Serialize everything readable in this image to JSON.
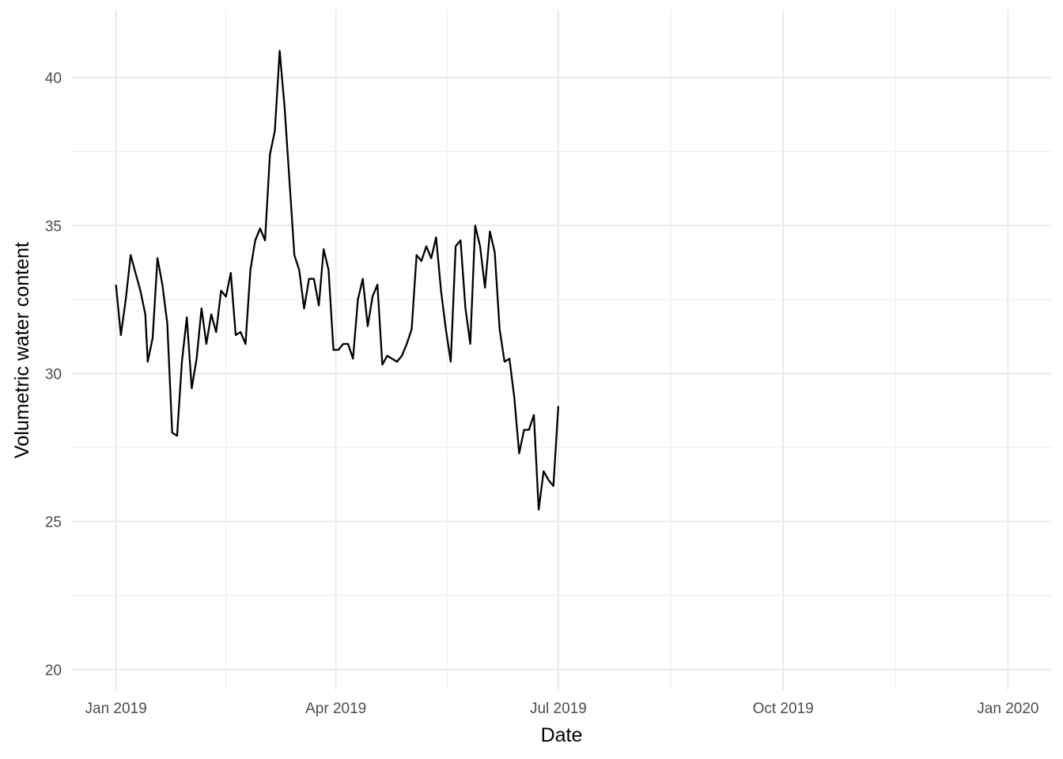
{
  "chart_data": {
    "type": "line",
    "title": "",
    "xlabel": "Date",
    "ylabel": "Volumetric water content",
    "x_ticks": [
      "Jan 2019",
      "Apr 2019",
      "Jul 2019",
      "Oct 2019",
      "Jan 2020"
    ],
    "x_tick_dates": [
      "2019-01-01",
      "2019-04-01",
      "2019-07-01",
      "2019-10-01",
      "2020-01-01"
    ],
    "y_ticks": [
      "20",
      "25",
      "30",
      "35",
      "40"
    ],
    "xlim": [
      "2018-12-14",
      "2020-01-19"
    ],
    "ylim": [
      19.3,
      42.3
    ],
    "grid": true,
    "series": [
      {
        "color": "#000000",
        "style": "line",
        "points": [
          [
            "2019-01-01",
            33.0
          ],
          [
            "2019-01-03",
            31.3
          ],
          [
            "2019-01-05",
            32.5
          ],
          [
            "2019-01-07",
            34.0
          ],
          [
            "2019-01-09",
            33.4
          ],
          [
            "2019-01-11",
            32.8
          ],
          [
            "2019-01-13",
            32.0
          ],
          [
            "2019-01-14",
            30.4
          ],
          [
            "2019-01-16",
            31.2
          ],
          [
            "2019-01-18",
            33.9
          ],
          [
            "2019-01-20",
            33.0
          ],
          [
            "2019-01-22",
            31.7
          ],
          [
            "2019-01-24",
            28.0
          ],
          [
            "2019-01-26",
            27.9
          ],
          [
            "2019-01-28",
            30.4
          ],
          [
            "2019-01-30",
            31.9
          ],
          [
            "2019-02-01",
            29.5
          ],
          [
            "2019-02-03",
            30.5
          ],
          [
            "2019-02-05",
            32.2
          ],
          [
            "2019-02-07",
            31.0
          ],
          [
            "2019-02-09",
            32.0
          ],
          [
            "2019-02-11",
            31.4
          ],
          [
            "2019-02-13",
            32.8
          ],
          [
            "2019-02-15",
            32.6
          ],
          [
            "2019-02-17",
            33.4
          ],
          [
            "2019-02-19",
            31.3
          ],
          [
            "2019-02-21",
            31.4
          ],
          [
            "2019-02-23",
            31.0
          ],
          [
            "2019-02-25",
            33.5
          ],
          [
            "2019-02-27",
            34.5
          ],
          [
            "2019-03-01",
            34.9
          ],
          [
            "2019-03-03",
            34.5
          ],
          [
            "2019-03-05",
            37.4
          ],
          [
            "2019-03-07",
            38.2
          ],
          [
            "2019-03-09",
            40.9
          ],
          [
            "2019-03-11",
            39.0
          ],
          [
            "2019-03-13",
            36.5
          ],
          [
            "2019-03-15",
            34.0
          ],
          [
            "2019-03-17",
            33.5
          ],
          [
            "2019-03-19",
            32.2
          ],
          [
            "2019-03-21",
            33.2
          ],
          [
            "2019-03-23",
            33.2
          ],
          [
            "2019-03-25",
            32.3
          ],
          [
            "2019-03-27",
            34.2
          ],
          [
            "2019-03-29",
            33.5
          ],
          [
            "2019-03-31",
            30.8
          ],
          [
            "2019-04-02",
            30.8
          ],
          [
            "2019-04-04",
            31.0
          ],
          [
            "2019-04-06",
            31.0
          ],
          [
            "2019-04-08",
            30.5
          ],
          [
            "2019-04-10",
            32.5
          ],
          [
            "2019-04-12",
            33.2
          ],
          [
            "2019-04-14",
            31.6
          ],
          [
            "2019-04-16",
            32.6
          ],
          [
            "2019-04-18",
            33.0
          ],
          [
            "2019-04-20",
            30.3
          ],
          [
            "2019-04-22",
            30.6
          ],
          [
            "2019-04-24",
            30.5
          ],
          [
            "2019-04-26",
            30.4
          ],
          [
            "2019-04-28",
            30.6
          ],
          [
            "2019-04-30",
            31.0
          ],
          [
            "2019-05-02",
            31.5
          ],
          [
            "2019-05-04",
            34.0
          ],
          [
            "2019-05-06",
            33.8
          ],
          [
            "2019-05-08",
            34.3
          ],
          [
            "2019-05-10",
            33.9
          ],
          [
            "2019-05-12",
            34.6
          ],
          [
            "2019-05-14",
            32.8
          ],
          [
            "2019-05-16",
            31.5
          ],
          [
            "2019-05-18",
            30.4
          ],
          [
            "2019-05-20",
            34.3
          ],
          [
            "2019-05-22",
            34.5
          ],
          [
            "2019-05-24",
            32.2
          ],
          [
            "2019-05-26",
            31.0
          ],
          [
            "2019-05-28",
            35.0
          ],
          [
            "2019-05-30",
            34.3
          ],
          [
            "2019-06-01",
            32.9
          ],
          [
            "2019-06-03",
            34.8
          ],
          [
            "2019-06-05",
            34.1
          ],
          [
            "2019-06-07",
            31.5
          ],
          [
            "2019-06-09",
            30.4
          ],
          [
            "2019-06-11",
            30.5
          ],
          [
            "2019-06-13",
            29.2
          ],
          [
            "2019-06-15",
            27.3
          ],
          [
            "2019-06-17",
            28.1
          ],
          [
            "2019-06-19",
            28.1
          ],
          [
            "2019-06-21",
            28.6
          ],
          [
            "2019-06-23",
            25.4
          ],
          [
            "2019-06-25",
            26.7
          ],
          [
            "2019-06-27",
            26.4
          ],
          [
            "2019-06-29",
            26.2
          ],
          [
            "2019-07-01",
            28.9
          ]
        ]
      }
    ]
  }
}
